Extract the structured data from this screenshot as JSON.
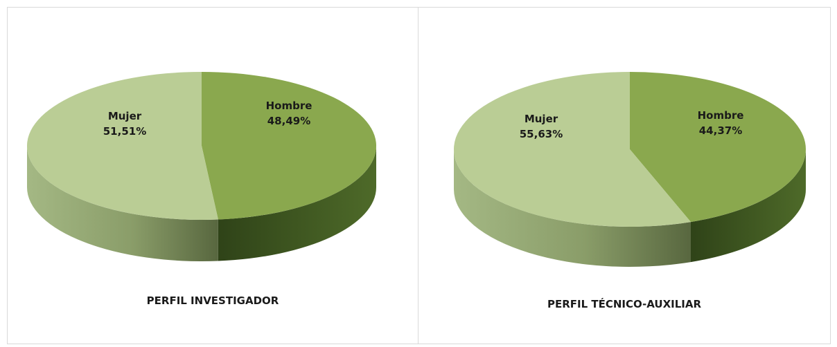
{
  "colors": {
    "hombre_top": "#8aa84e",
    "mujer_top": "#bacd95",
    "hombre_side_light": "#4e6a29",
    "hombre_side_dark": "#2f4318",
    "mujer_side_light": "#a4b884",
    "mujer_side_dark": "#58673f",
    "panel_border": "#d9d9d9"
  },
  "chart_data": [
    {
      "type": "pie",
      "title": "PERFIL INVESTIGADOR",
      "slices": [
        {
          "name": "Hombre",
          "value": 48.49,
          "label": "48,49%",
          "color": "#8aa84e"
        },
        {
          "name": "Mujer",
          "value": 51.51,
          "label": "51,51%",
          "color": "#bacd95"
        }
      ],
      "style": "3d-pie"
    },
    {
      "type": "pie",
      "title": "PERFIL TÉCNICO-AUXILIAR",
      "slices": [
        {
          "name": "Hombre",
          "value": 44.37,
          "label": "44,37%",
          "color": "#8aa84e"
        },
        {
          "name": "Mujer",
          "value": 55.63,
          "label": "55,63%",
          "color": "#bacd95"
        }
      ],
      "style": "3d-pie"
    }
  ]
}
